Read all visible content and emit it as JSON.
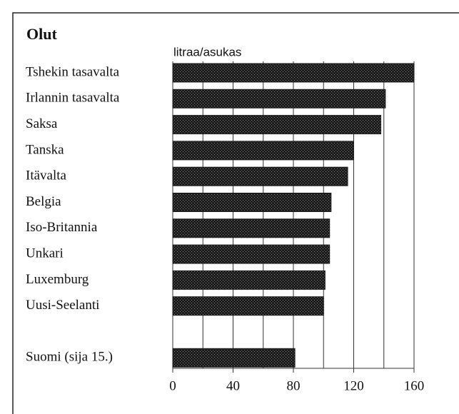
{
  "chart_data": {
    "type": "barh",
    "title": "Olut",
    "xlabel": "litraa/asukas",
    "categories": [
      "Tshekin tasavalta",
      "Irlannin tasavalta",
      "Saksa",
      "Tanska",
      "Itävalta",
      "Belgia",
      "Iso-Britannia",
      "Unkari",
      "Luxemburg",
      "Uusi-Seelanti",
      "Suomi (sija 15.)"
    ],
    "values": [
      160,
      141,
      138,
      120,
      116,
      105,
      104,
      104,
      101,
      100,
      81
    ],
    "color": "#1c1c1c",
    "xlim": [
      0,
      160
    ],
    "xticks": [
      0,
      40,
      80,
      120,
      160
    ],
    "minor_xticks": [
      20,
      60,
      100,
      140
    ],
    "grid": true
  }
}
